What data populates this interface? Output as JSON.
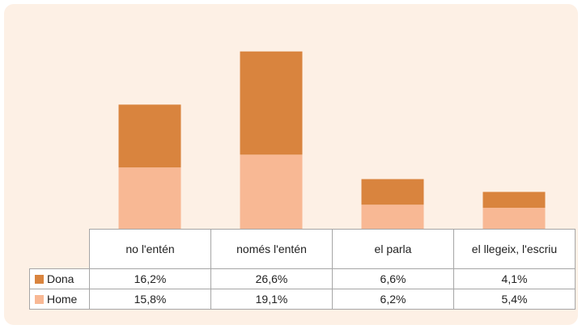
{
  "chart_data": {
    "type": "bar",
    "stacked": true,
    "categories": [
      "no l'entén",
      "només l'entén",
      "el parla",
      "el llegeix, l'escriu"
    ],
    "series": [
      {
        "name": "Dona",
        "color": "#d9843e",
        "values": [
          16.2,
          26.6,
          6.6,
          4.1
        ],
        "value_labels": [
          "16,2%",
          "26,6%",
          "6,6%",
          "4,1%"
        ]
      },
      {
        "name": "Home",
        "color": "#f8b894",
        "values": [
          15.8,
          19.1,
          6.2,
          5.4
        ],
        "value_labels": [
          "15,8%",
          "19,1%",
          "6,2%",
          "5,4%"
        ]
      }
    ]
  }
}
